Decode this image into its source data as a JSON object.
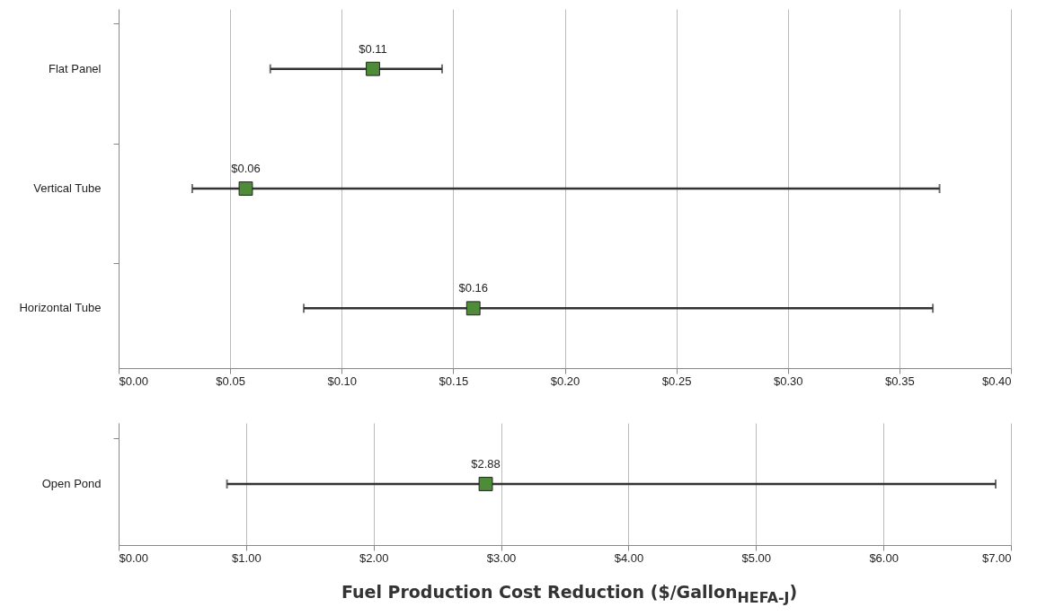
{
  "chart_data": [
    {
      "type": "scatter",
      "orientation": "horizontal",
      "categories": [
        "Flat Panel",
        "Vertical Tube",
        "Horizontal Tube"
      ],
      "values": [
        0.114,
        0.057,
        0.159
      ],
      "errors": [
        [
          0.068,
          0.145
        ],
        [
          0.033,
          0.368
        ],
        [
          0.083,
          0.365
        ]
      ],
      "value_labels": [
        "$0.11",
        "$0.06",
        "$0.16"
      ],
      "color": "#4e8c3a",
      "marker": "square",
      "grid": "x",
      "xlim": [
        0,
        0.4
      ],
      "xticks": [
        {
          "value": 0,
          "label": "$0.00"
        },
        {
          "value": 0.05,
          "label": "$0.05"
        },
        {
          "value": 0.1,
          "label": "$0.10"
        },
        {
          "value": 0.15,
          "label": "$0.15"
        },
        {
          "value": 0.2,
          "label": "$0.20"
        },
        {
          "value": 0.25,
          "label": "$0.25"
        },
        {
          "value": 0.3,
          "label": "$0.30"
        },
        {
          "value": 0.35,
          "label": "$0.35"
        },
        {
          "value": 0.4,
          "label": "$0.40"
        }
      ]
    },
    {
      "type": "scatter",
      "orientation": "horizontal",
      "categories": [
        "Open Pond"
      ],
      "values": [
        2.88
      ],
      "errors": [
        [
          0.85,
          6.88
        ]
      ],
      "value_labels": [
        "$2.88"
      ],
      "color": "#4e8c3a",
      "marker": "square",
      "grid": "x",
      "xlim": [
        0,
        7
      ],
      "xticks": [
        {
          "value": 0,
          "label": "$0.00"
        },
        {
          "value": 1,
          "label": "$1.00"
        },
        {
          "value": 2,
          "label": "$2.00"
        },
        {
          "value": 3,
          "label": "$3.00"
        },
        {
          "value": 4,
          "label": "$4.00"
        },
        {
          "value": 5,
          "label": "$5.00"
        },
        {
          "value": 6,
          "label": "$6.00"
        },
        {
          "value": 7,
          "label": "$7.00"
        }
      ],
      "xlabel": "Fuel Production Cost Reduction  ($/Gallon$_{HEFA-J}$)"
    }
  ]
}
